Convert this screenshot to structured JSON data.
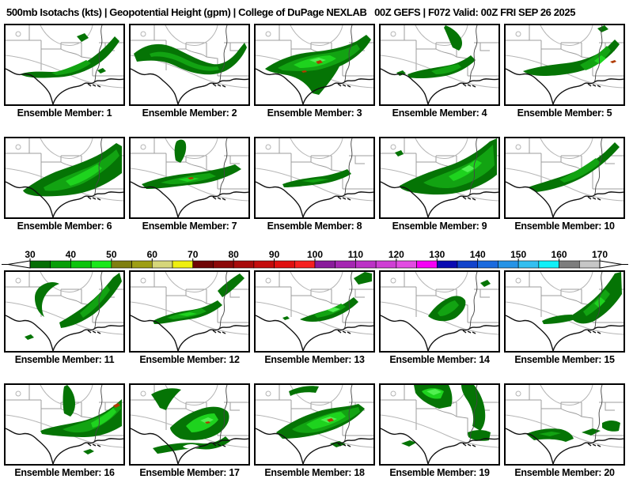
{
  "title": {
    "text": "500mb Isotachs (kts) | Geopotential Height (gpm) | College of DuPage NEXLAB   00Z GEFS | F072 Valid: 00Z FRI SEP 26 2025"
  },
  "panels": [
    {
      "member": 1,
      "label": "Ensemble Member: 1"
    },
    {
      "member": 2,
      "label": "Ensemble Member: 2"
    },
    {
      "member": 3,
      "label": "Ensemble Member: 3"
    },
    {
      "member": 4,
      "label": "Ensemble Member: 4"
    },
    {
      "member": 5,
      "label": "Ensemble Member: 5"
    },
    {
      "member": 6,
      "label": "Ensemble Member: 6"
    },
    {
      "member": 7,
      "label": "Ensemble Member: 7"
    },
    {
      "member": 8,
      "label": "Ensemble Member: 8"
    },
    {
      "member": 9,
      "label": "Ensemble Member: 9"
    },
    {
      "member": 10,
      "label": "Ensemble Member: 10"
    },
    {
      "member": 11,
      "label": "Ensemble Member: 11"
    },
    {
      "member": 12,
      "label": "Ensemble Member: 12"
    },
    {
      "member": 13,
      "label": "Ensemble Member: 13"
    },
    {
      "member": 14,
      "label": "Ensemble Member: 14"
    },
    {
      "member": 15,
      "label": "Ensemble Member: 15"
    },
    {
      "member": 16,
      "label": "Ensemble Member: 16"
    },
    {
      "member": 17,
      "label": "Ensemble Member: 17"
    },
    {
      "member": 18,
      "label": "Ensemble Member: 18"
    },
    {
      "member": 19,
      "label": "Ensemble Member: 19"
    },
    {
      "member": 20,
      "label": "Ensemble Member: 20"
    }
  ],
  "colorbar": {
    "unit": "kts",
    "range": [
      30,
      170
    ],
    "segment_kts": 5,
    "tick_labels": [
      30,
      40,
      50,
      60,
      70,
      80,
      90,
      100,
      110,
      120,
      130,
      140,
      150,
      160,
      170
    ],
    "colors": [
      "#056e05",
      "#089e08",
      "#0cc40c",
      "#1ae81a",
      "#7f7f10",
      "#9e9e14",
      "#d6d67a",
      "#efef10",
      "#6f0505",
      "#8c0808",
      "#a80a0a",
      "#c40c0c",
      "#e01010",
      "#f62020",
      "#8a1b9b",
      "#a526b2",
      "#bc32c6",
      "#cf3fd4",
      "#e24ce2",
      "#f500f5",
      "#0b0bb2",
      "#1243cc",
      "#1b6ade",
      "#2693e6",
      "#33bff0",
      "#10f0f8",
      "#7d7d7d",
      "#c6c6c6"
    ]
  },
  "map_colors": {
    "fill_30": "#057405",
    "fill_35": "#12a312",
    "fill_40": "#1ed31e",
    "fill_45": "#50f050",
    "speck": "#b03a00",
    "state_line": "#9c9c9c",
    "height_contour": "#b5b5b5",
    "river": "#444444",
    "coast": "#111111",
    "panel_border": "#000000",
    "background": "#ffffff"
  }
}
